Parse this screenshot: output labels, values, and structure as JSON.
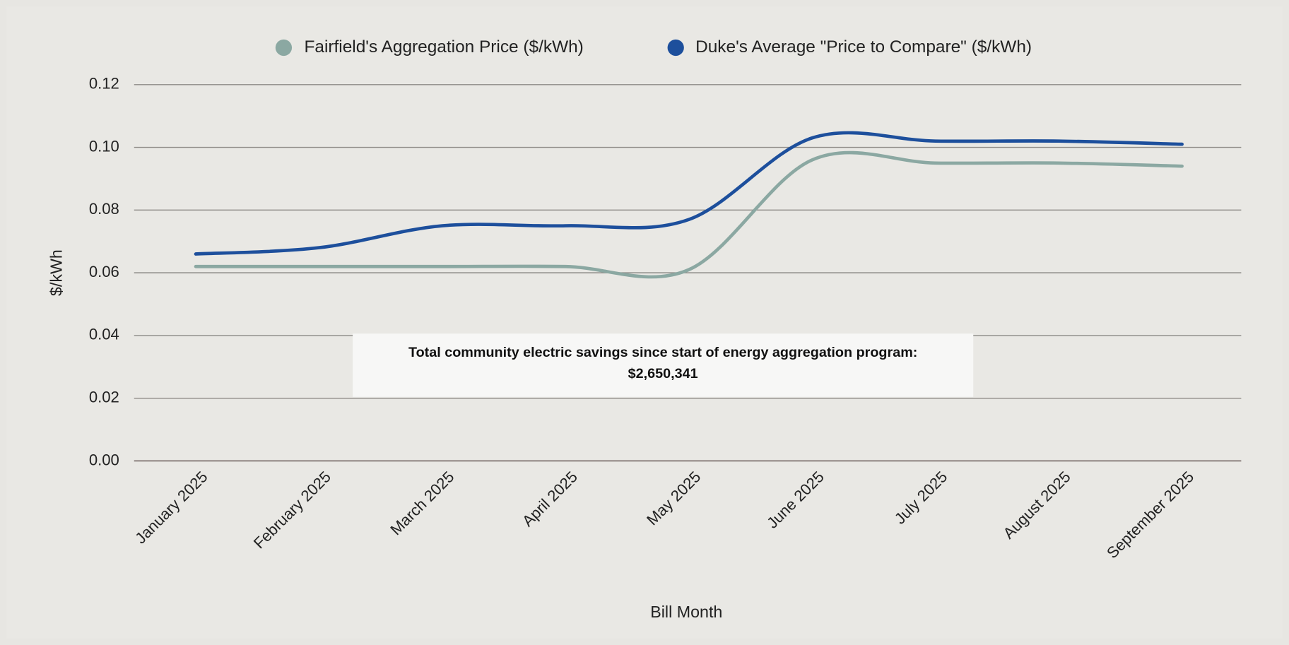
{
  "chart_data": {
    "type": "line",
    "categories": [
      "January 2025",
      "February 2025",
      "March 2025",
      "April 2025",
      "May 2025",
      "June 2025",
      "July 2025",
      "August 2025",
      "September 2025"
    ],
    "series": [
      {
        "name": "Fairfield's Aggregation Price ($/kWh)",
        "color": "#8ba8a2",
        "values": [
          0.062,
          0.062,
          0.062,
          0.062,
          0.061,
          0.096,
          0.095,
          0.095,
          0.094
        ]
      },
      {
        "name": "Duke's Average \"Price to Compare\" ($/kWh)",
        "color": "#1d4f9c",
        "values": [
          0.066,
          0.068,
          0.075,
          0.075,
          0.077,
          0.103,
          0.102,
          0.102,
          0.101
        ]
      }
    ],
    "ylim": [
      0,
      0.12
    ],
    "yticks": [
      {
        "value": 0,
        "label": "0.00"
      },
      0.02,
      0.04,
      0.06,
      0.08,
      {
        "value": 0.1,
        "label": "0.10"
      },
      0.12
    ],
    "y_label": "$/kWh",
    "x_label": "Bill Month",
    "annotation": "Total community electric savings since start of energy aggregation program: $2,650,341",
    "grid": true,
    "smooth": true,
    "legend": "top"
  }
}
